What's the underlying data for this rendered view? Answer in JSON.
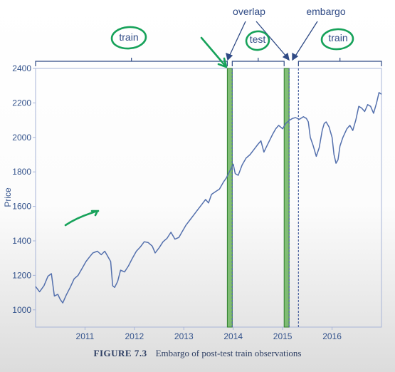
{
  "caption": {
    "figure_number": "FIGURE 7.3",
    "text": "Embargo of post-test train observations"
  },
  "annotations": {
    "train_left": "train",
    "test": "test",
    "train_right": "train",
    "overlap": "overlap",
    "embargo": "embargo"
  },
  "colors": {
    "line": "#5470ad",
    "axes": "#a8b5d8",
    "text": "#34538c",
    "band_fill": "#6cb45e",
    "band_edge": "#2d7f2d",
    "ink_green": "#17a25a"
  },
  "chart_data": {
    "type": "line",
    "title": "",
    "xlabel": "",
    "ylabel": "Price",
    "x_ticks": [
      "2011",
      "2012",
      "2013",
      "2014",
      "2015",
      "2016"
    ],
    "y_ticks": [
      1000,
      1200,
      1400,
      1600,
      1800,
      2000,
      2200,
      2400
    ],
    "xlim": [
      2010.0,
      2017.0
    ],
    "ylim": [
      900,
      2400
    ],
    "grid": false,
    "series": [
      {
        "x": [
          2010.0,
          2010.08,
          2010.17,
          2010.25,
          2010.32,
          2010.38,
          2010.45,
          2010.5,
          2010.55,
          2010.62,
          2010.7,
          2010.78,
          2010.86,
          2010.94,
          2011.02,
          2011.1,
          2011.16,
          2011.25,
          2011.33,
          2011.4,
          2011.46,
          2011.52,
          2011.56,
          2011.6,
          2011.66,
          2011.72,
          2011.8,
          2011.88,
          2011.96,
          2012.04,
          2012.12,
          2012.2,
          2012.28,
          2012.36,
          2012.42,
          2012.5,
          2012.58,
          2012.66,
          2012.74,
          2012.82,
          2012.9,
          2012.96,
          2013.04,
          2013.12,
          2013.2,
          2013.28,
          2013.36,
          2013.44,
          2013.5,
          2013.56,
          2013.64,
          2013.72,
          2013.8,
          2013.86,
          2013.92,
          2014.0,
          2014.04,
          2014.1,
          2014.18,
          2014.26,
          2014.34,
          2014.42,
          2014.5,
          2014.56,
          2014.62,
          2014.68,
          2014.74,
          2014.8,
          2014.86,
          2014.92,
          2015.0,
          2015.06,
          2015.14,
          2015.2,
          2015.26,
          2015.34,
          2015.42,
          2015.48,
          2015.52,
          2015.56,
          2015.62,
          2015.68,
          2015.74,
          2015.8,
          2015.84,
          2015.88,
          2015.94,
          2016.0,
          2016.04,
          2016.08,
          2016.12,
          2016.16,
          2016.22,
          2016.3,
          2016.36,
          2016.42,
          2016.48,
          2016.54,
          2016.6,
          2016.66,
          2016.72,
          2016.78,
          2016.84,
          2016.9,
          2016.95,
          2017.0
        ],
        "y": [
          1135,
          1105,
          1140,
          1195,
          1210,
          1080,
          1090,
          1060,
          1040,
          1085,
          1130,
          1180,
          1200,
          1240,
          1280,
          1310,
          1330,
          1340,
          1320,
          1340,
          1310,
          1280,
          1140,
          1130,
          1165,
          1230,
          1220,
          1255,
          1300,
          1340,
          1365,
          1395,
          1390,
          1370,
          1330,
          1360,
          1395,
          1415,
          1450,
          1410,
          1420,
          1450,
          1490,
          1520,
          1550,
          1580,
          1610,
          1640,
          1620,
          1670,
          1685,
          1700,
          1740,
          1765,
          1800,
          1845,
          1790,
          1780,
          1840,
          1880,
          1900,
          1930,
          1960,
          1980,
          1915,
          1950,
          1985,
          2020,
          2050,
          2070,
          2050,
          2080,
          2100,
          2110,
          2115,
          2105,
          2120,
          2110,
          2090,
          2000,
          1950,
          1890,
          1940,
          2040,
          2080,
          2090,
          2060,
          2000,
          1900,
          1850,
          1870,
          1950,
          2000,
          2050,
          2070,
          2040,
          2100,
          2180,
          2170,
          2150,
          2190,
          2180,
          2140,
          2200,
          2260,
          2250
        ]
      }
    ],
    "bands": [
      {
        "from": 2013.88,
        "to": 2013.98,
        "name": "overlap"
      },
      {
        "from": 2015.03,
        "to": 2015.13,
        "name": "embargo"
      }
    ],
    "dashed_lines": [
      2013.98,
      2015.13,
      2015.32
    ],
    "brackets": [
      {
        "from": 2010.0,
        "to": 2013.88,
        "label": "train"
      },
      {
        "from": 2013.98,
        "to": 2015.03,
        "label": "test"
      },
      {
        "from": 2015.32,
        "to": 2017.0,
        "label": "train"
      }
    ]
  }
}
